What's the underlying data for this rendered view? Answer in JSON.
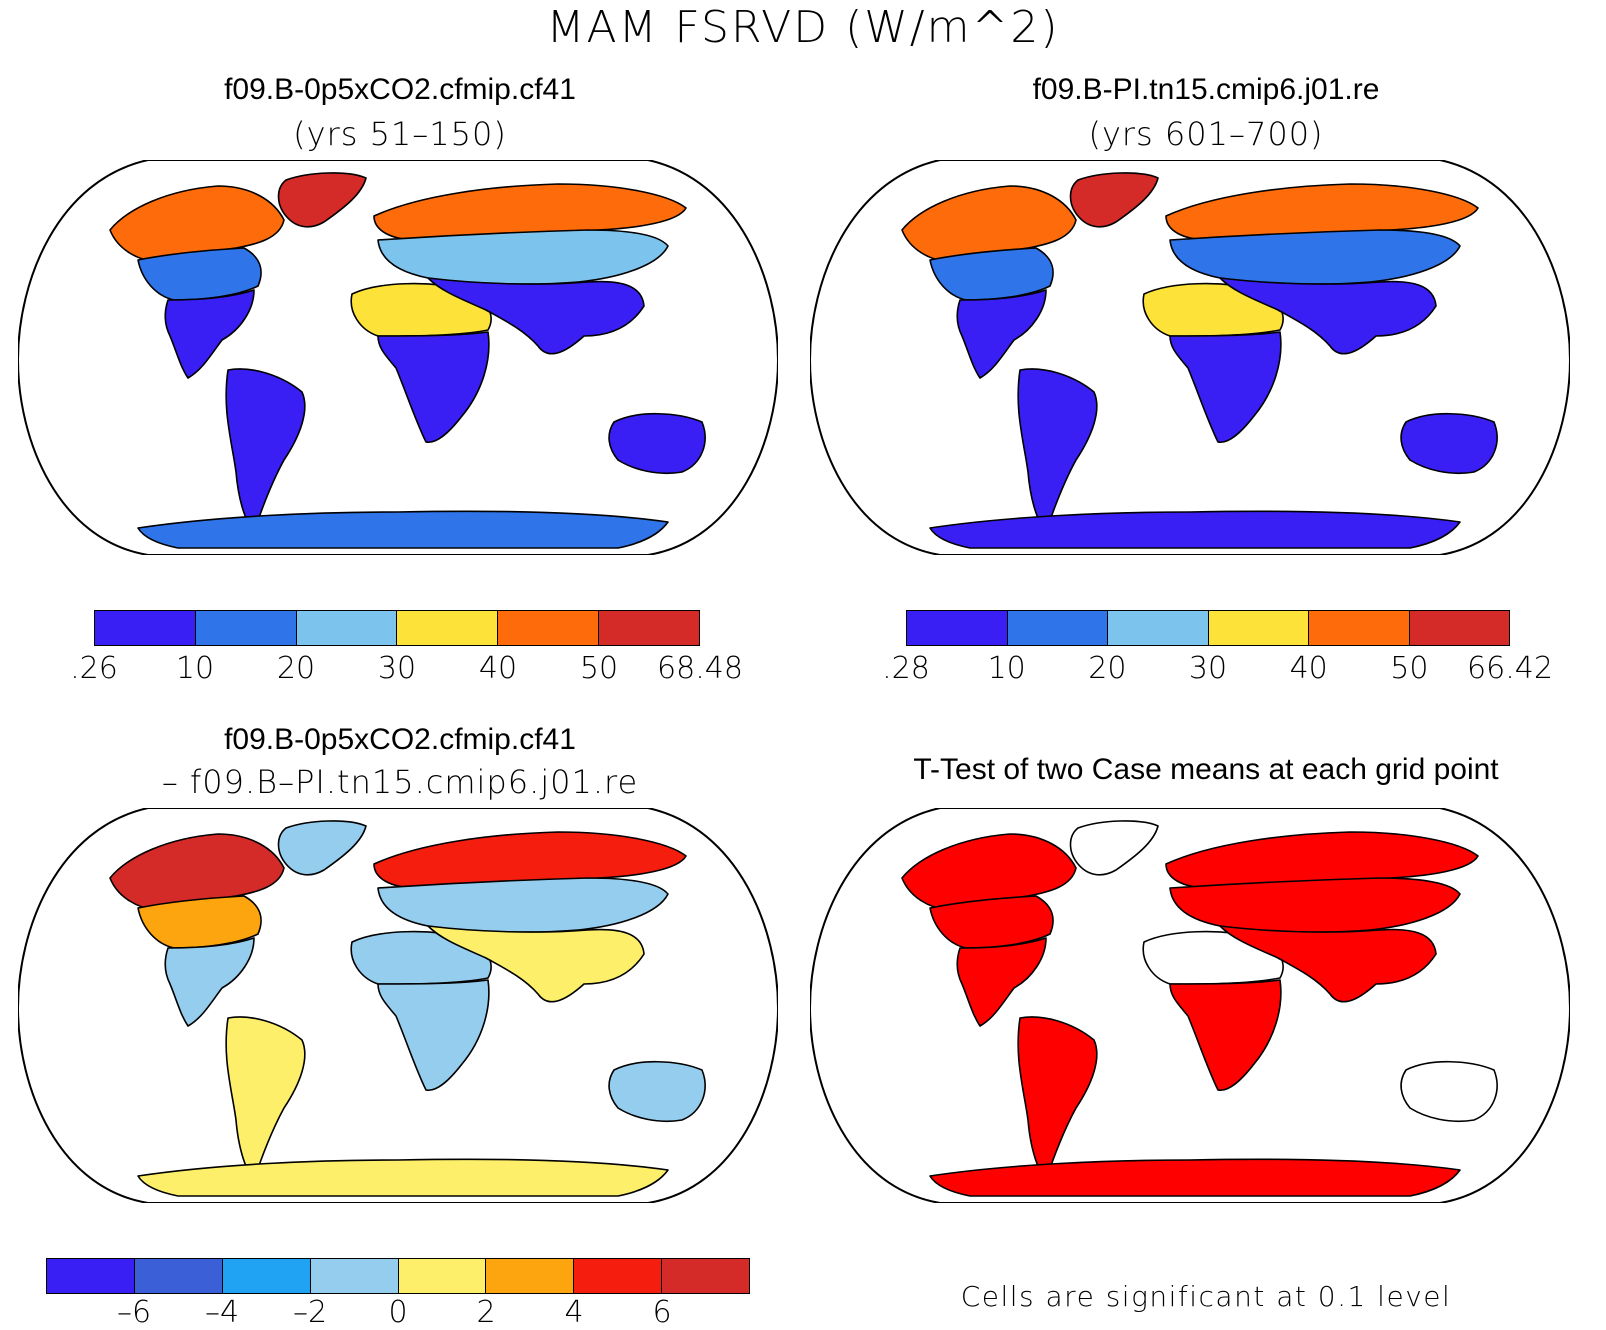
{
  "title": "MAM FSRVD (W/m^2)",
  "panels": {
    "case1": {
      "title": "f09.B-0p5xCO2.cfmip.cf41",
      "subtitle": "(yrs 51–150)"
    },
    "case2": {
      "title": "f09.B-PI.tn15.cmip6.j01.re",
      "subtitle": "(yrs 601–700)"
    },
    "diff": {
      "title": "f09.B-0p5xCO2.cfmip.cf41",
      "subtitle": "– f09.B–PI.tn15.cmip6.j01.re"
    },
    "ttest": {
      "title": "T-Test of two Case means at each grid point",
      "note": "Cells are significant at 0.1 level"
    }
  },
  "colorbars": {
    "case1": {
      "colors": [
        "#3a1ff5",
        "#2f74e8",
        "#7cc3ee",
        "#fde23a",
        "#fd6b0a",
        "#d42b28"
      ],
      "labels": [
        ".26",
        "10",
        "20",
        "30",
        "40",
        "50",
        "68.48"
      ]
    },
    "case2": {
      "colors": [
        "#3a1ff5",
        "#2f74e8",
        "#7cc3ee",
        "#fde23a",
        "#fd6b0a",
        "#d42b28"
      ],
      "labels": [
        ".28",
        "10",
        "20",
        "30",
        "40",
        "50",
        "66.42"
      ]
    },
    "diff": {
      "colors": [
        "#3a1ff5",
        "#3b5fd6",
        "#1fa3f2",
        "#95cdee",
        "#fdef6a",
        "#fda50f",
        "#f51d0e",
        "#d42b28"
      ],
      "labels": [
        "–6",
        "–4",
        "–2",
        "0",
        "2",
        "4",
        "6"
      ]
    }
  },
  "map_colors": {
    "ocean": "#ffffff",
    "coast": "#000000",
    "significant": "#ff0000"
  },
  "map_fills": {
    "case1": {
      "na_north": "#fd6b0a",
      "na_mid": "#2f74e8",
      "na_south": "#3a1ff5",
      "greenland": "#d42b28",
      "sa": "#3a1ff5",
      "africa_n": "#fde23a",
      "africa_s": "#3a1ff5",
      "eurasia_n": "#fd6b0a",
      "eurasia_mid": "#7cc3ee",
      "eurasia_s": "#3a1ff5",
      "australia": "#3a1ff5",
      "antarctica": "#2f74e8"
    },
    "case2": {
      "na_north": "#fd6b0a",
      "na_mid": "#2f74e8",
      "na_south": "#3a1ff5",
      "greenland": "#d42b28",
      "sa": "#3a1ff5",
      "africa_n": "#fde23a",
      "africa_s": "#3a1ff5",
      "eurasia_n": "#fd6b0a",
      "eurasia_mid": "#2f74e8",
      "eurasia_s": "#3a1ff5",
      "australia": "#3a1ff5",
      "antarctica": "#3a1ff5"
    },
    "diff": {
      "na_north": "#d42b28",
      "na_mid": "#fda50f",
      "na_south": "#95cdee",
      "greenland": "#95cdee",
      "sa": "#fdef6a",
      "africa_n": "#95cdee",
      "africa_s": "#95cdee",
      "eurasia_n": "#f51d0e",
      "eurasia_mid": "#95cdee",
      "eurasia_s": "#fdef6a",
      "australia": "#95cdee",
      "antarctica": "#fdef6a"
    },
    "ttest": {
      "na_north": "#ff0000",
      "na_mid": "#ff0000",
      "na_south": "#ff0000",
      "greenland": "#ffffff",
      "sa": "#ff0000",
      "africa_n": "#ffffff",
      "africa_s": "#ff0000",
      "eurasia_n": "#ff0000",
      "eurasia_mid": "#ff0000",
      "eurasia_s": "#ff0000",
      "australia": "#ffffff",
      "antarctica": "#ff0000"
    }
  }
}
